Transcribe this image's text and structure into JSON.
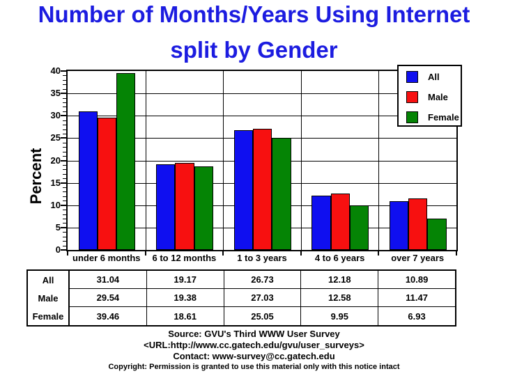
{
  "title": {
    "line1": "Number of Months/Years Using Internet",
    "line2": "split by Gender",
    "color": "#1c1ce0"
  },
  "chart_data": {
    "type": "bar",
    "title": "Number of Months/Years Using Internet split by Gender",
    "categories": [
      "under 6 months",
      "6 to 12 months",
      "1 to 3 years",
      "4 to 6 years",
      "over 7 years"
    ],
    "series": [
      {
        "name": "All",
        "color": "#0f0ff0",
        "values": [
          31.04,
          19.17,
          26.73,
          12.18,
          10.89
        ]
      },
      {
        "name": "Male",
        "color": "#f71010",
        "values": [
          29.54,
          19.38,
          27.03,
          12.58,
          11.47
        ]
      },
      {
        "name": "Female",
        "color": "#058405",
        "values": [
          39.46,
          18.61,
          25.05,
          9.95,
          6.93
        ]
      }
    ],
    "xlabel": "",
    "ylabel": "Percent",
    "ylim": [
      0,
      40
    ],
    "yticks": [
      0,
      5,
      10,
      15,
      20,
      25,
      30,
      35,
      40
    ],
    "minor_tick_step": 1,
    "grid": "horizontal-major",
    "group_dividers": true,
    "legend_position": "top-right"
  },
  "table": {
    "row_labels": [
      "All",
      "Male",
      "Female"
    ],
    "columns": [
      "under 6 months",
      "6 to 12 months",
      "1 to 3 years",
      "4 to 6 years",
      "over 7 years"
    ],
    "rows": [
      [
        "31.04",
        "19.17",
        "26.73",
        "12.18",
        "10.89"
      ],
      [
        "29.54",
        "19.38",
        "27.03",
        "12.58",
        "11.47"
      ],
      [
        "39.46",
        "18.61",
        "25.05",
        "9.95",
        "6.93"
      ]
    ]
  },
  "footer": {
    "source": "Source: GVU's Third WWW User Survey",
    "url": "<URL:http://www.cc.gatech.edu/gvu/user_surveys>",
    "contact": "Contact: www-survey@cc.gatech.edu",
    "copyright": "Copyright: Permission is granted to use this material only with this notice intact"
  }
}
